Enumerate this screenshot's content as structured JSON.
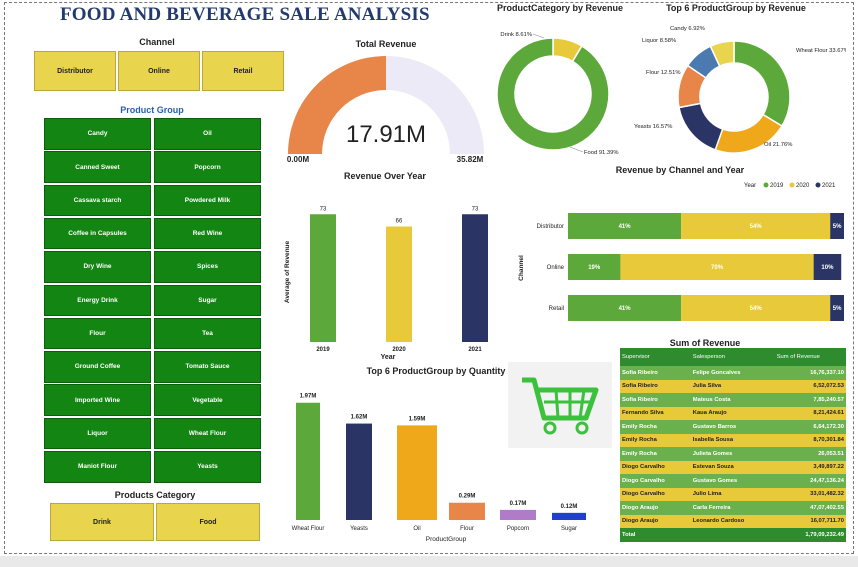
{
  "dashboard": {
    "title": "FOOD AND BEVERAGE SALE ANALYSIS"
  },
  "channel_slicer": {
    "title": "Channel",
    "items": [
      "Distributor",
      "Online",
      "Retail"
    ]
  },
  "product_group_slicer": {
    "title": "Product Group",
    "items": [
      "Candy",
      "Oil",
      "Canned Sweet",
      "Popcorn",
      "Cassava starch",
      "Powdered Milk",
      "Coffee in Capsules",
      "Red Wine",
      "Dry Wine",
      "Spices",
      "Energy Drink",
      "Sugar",
      "Flour",
      "Tea",
      "Ground Coffee",
      "Tomato Sauce",
      "Imported Wine",
      "Vegetable",
      "Liquor",
      "Wheat Flour",
      "Maniot Flour",
      "Yeasts"
    ]
  },
  "category_slicer": {
    "title": "Products Category",
    "items": [
      "Drink",
      "Food"
    ]
  },
  "colors": {
    "green": "#5da83a",
    "yellow": "#e8c93a",
    "navy": "#2a3566",
    "orange": "#e8864a",
    "gauge_bg": "#eceaf6"
  },
  "chart_data": [
    {
      "type": "gauge",
      "title": "Total Revenue",
      "value_label": "17.91M",
      "min_label": "0.00M",
      "max_label": "35.82M",
      "value": 17.91,
      "min": 0,
      "max": 35.82
    },
    {
      "type": "pie",
      "title": "ProductCategory by Revenue",
      "slices": [
        {
          "label": "Drink",
          "value": 8.61,
          "data_label": "Drink 8.61%",
          "color": "#e8c93a"
        },
        {
          "label": "Food",
          "value": 91.39,
          "data_label": "Food 91.39%",
          "color": "#5da83a"
        }
      ]
    },
    {
      "type": "pie",
      "title": "Top 6 ProductGroup by Revenue",
      "slices": [
        {
          "label": "Wheat Flour",
          "value": 33.67,
          "data_label": "Wheat Flour 33.67%",
          "color": "#5da83a"
        },
        {
          "label": "Oil",
          "value": 21.76,
          "data_label": "Oil 21.76%",
          "color": "#eea81a"
        },
        {
          "label": "Yeasts",
          "value": 16.57,
          "data_label": "Yeasts 16.57%",
          "color": "#2a3566"
        },
        {
          "label": "Flour",
          "value": 12.51,
          "data_label": "Flour 12.51%",
          "color": "#e8864a"
        },
        {
          "label": "Liquor",
          "value": 8.58,
          "data_label": "Liquor 8.58%",
          "color": "#4a7ab0"
        },
        {
          "label": "Candy",
          "value": 6.92,
          "data_label": "Candy 6.92%",
          "color": "#e8d44d"
        }
      ]
    },
    {
      "type": "bar",
      "title": "Revenue Over Year",
      "xlabel": "Year",
      "ylabel": "Average of Revenue",
      "categories": [
        "2019",
        "2020",
        "2021"
      ],
      "values": [
        73,
        66,
        73
      ],
      "colors": [
        "#5da83a",
        "#e8c93a",
        "#2a3566"
      ],
      "ylim": [
        0,
        80
      ]
    },
    {
      "type": "bar",
      "orientation": "horizontal-stacked-100",
      "title": "Revenue by Channel and Year",
      "ylabel": "Channel",
      "legend": {
        "title": "Year",
        "entries": [
          "2019",
          "2020",
          "2021"
        ],
        "position": "top-right"
      },
      "categories": [
        "Distributor",
        "Online",
        "Retail"
      ],
      "series": [
        {
          "name": "2019",
          "values": [
            41,
            19,
            41
          ],
          "color": "#5da83a"
        },
        {
          "name": "2020",
          "values": [
            54,
            70,
            54
          ],
          "color": "#e8c93a"
        },
        {
          "name": "2021",
          "values": [
            5,
            10,
            5
          ],
          "color": "#2a3566"
        }
      ]
    },
    {
      "type": "bar",
      "title": "Top 6 ProductGroup by Quantity",
      "xlabel": "ProductGroup",
      "categories": [
        "Wheat Flour",
        "Yeasts",
        "Oil",
        "Flour",
        "Popcorn",
        "Sugar"
      ],
      "values": [
        1.97,
        1.62,
        1.59,
        0.29,
        0.17,
        0.12
      ],
      "data_labels": [
        "1.97M",
        "1.62M",
        "1.59M",
        "0.29M",
        "0.17M",
        "0.12M"
      ],
      "colors": [
        "#5da83a",
        "#2a3566",
        "#eea81a",
        "#e8864a",
        "#b07cc8",
        "#1f3fd0"
      ],
      "ylim": [
        0,
        2.1
      ]
    },
    {
      "type": "table",
      "title": "Sum of Revenue",
      "columns": [
        "Supervisor",
        "Salesperson",
        "Sum of Revenue"
      ],
      "rows": [
        [
          "Sofia Ribeiro",
          "Felipe Goncalves",
          "16,76,337.10"
        ],
        [
          "Sofia Ribeiro",
          "Julia Silva",
          "6,52,072.53"
        ],
        [
          "Sofia Ribeiro",
          "Mateus Costa",
          "7,85,240.57"
        ],
        [
          "Fernando Silva",
          "Kaua Araujo",
          "8,21,424.61"
        ],
        [
          "Emily Rocha",
          "Gustavo Barros",
          "6,64,172.30"
        ],
        [
          "Emily Rocha",
          "Isabella Sousa",
          "8,70,301.84"
        ],
        [
          "Emily Rocha",
          "Julieta Gomes",
          "26,053.51"
        ],
        [
          "Diogo Carvalho",
          "Estevan Souza",
          "3,49,897.22"
        ],
        [
          "Diogo Carvalho",
          "Gustavo Gomes",
          "24,47,136.24"
        ],
        [
          "Diogo Carvalho",
          "Julio Lima",
          "33,01,482.32"
        ],
        [
          "Diogo Araujo",
          "Carla Ferreira",
          "47,07,402.55"
        ],
        [
          "Diogo Araujo",
          "Leonardo Cardoso",
          "16,07,711.70"
        ]
      ],
      "total": [
        "Total",
        "",
        "1,79,09,232.49"
      ]
    }
  ]
}
